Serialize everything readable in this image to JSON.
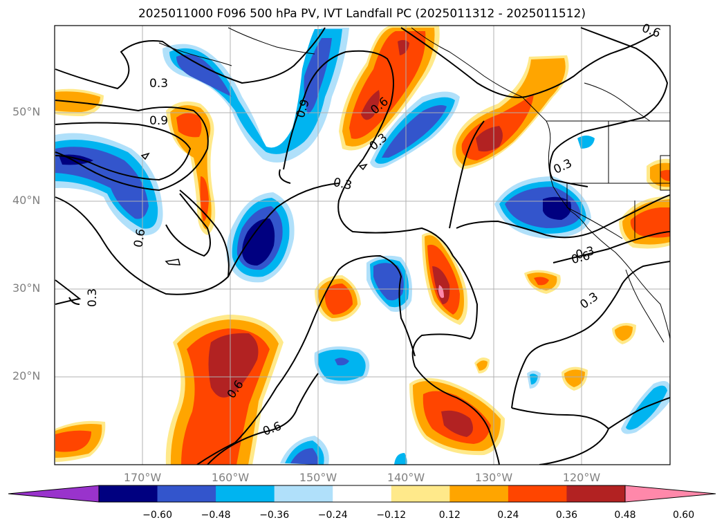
{
  "title": "2025011000 F096 500 hPa PV, IVT Landfall PC (2025011312 - 2025011512)",
  "lat_labels": [
    "50°N",
    "40°N",
    "30°N",
    "20°N"
  ],
  "lon_labels": [
    "170°W",
    "160°W",
    "150°W",
    "140°W",
    "130°W",
    "120°W"
  ],
  "contour_labels": [
    "0.3",
    "0.9",
    "0.6",
    "0.3",
    "0.9",
    "0.6",
    "0.3",
    "0.3",
    "0.6",
    "0.3",
    "0.6",
    "0.3",
    "0.6",
    "0.6",
    "0.3"
  ],
  "colorbar": {
    "ticks": [
      "−0.60",
      "−0.48",
      "−0.36",
      "−0.24",
      "−0.12",
      "0.12",
      "0.24",
      "0.36",
      "0.48",
      "0.60"
    ],
    "colors": [
      "#9933cc",
      "#000080",
      "#3355cc",
      "#00b4f0",
      "#b0e0fa",
      "#ffffff",
      "#ffe98a",
      "#ffa500",
      "#ff4500",
      "#b22222",
      "#ff88aa"
    ]
  },
  "colors": {
    "deep_blue": "#000080",
    "mid_blue": "#3355cc",
    "cyan": "#00b4f0",
    "light_blue": "#b0e0fa",
    "light_yellow": "#ffe98a",
    "orange": "#ffa500",
    "red_orange": "#ff4500",
    "dark_red": "#b22222",
    "pink": "#ff88aa"
  }
}
